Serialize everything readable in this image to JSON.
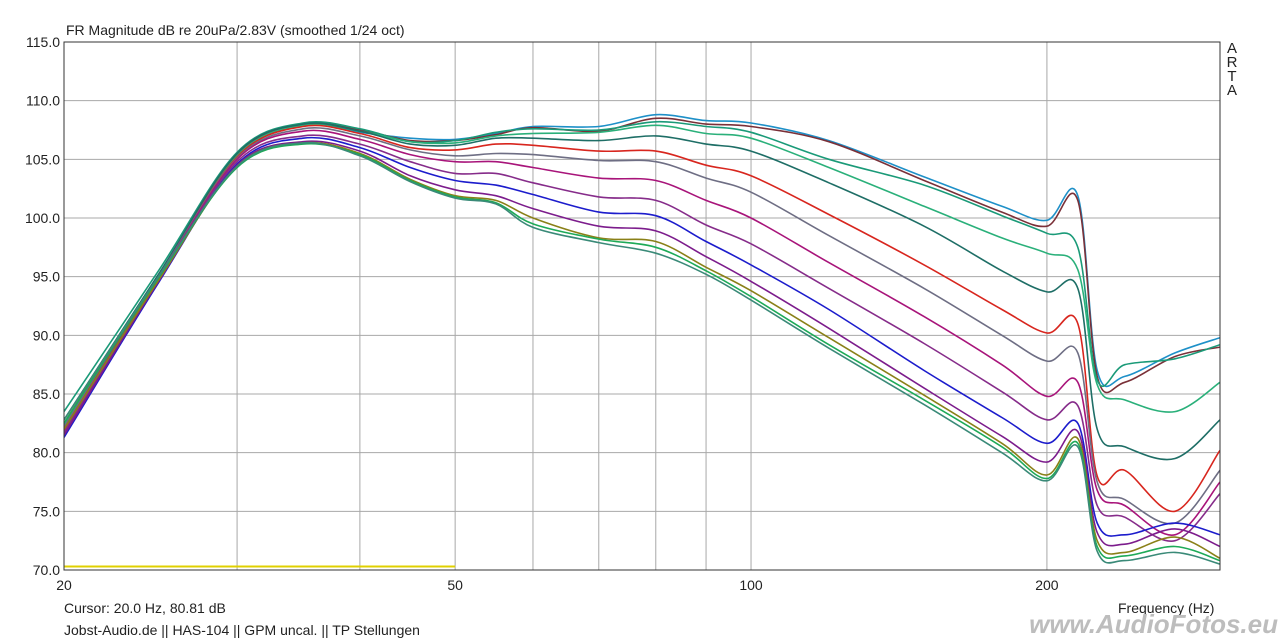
{
  "chart_data": {
    "type": "line",
    "title": "FR Magnitude dB re 20uPa/2.83V (smoothed 1/24 oct)",
    "xlabel": "Frequency (Hz)",
    "x_scale": "log",
    "xlim": [
      20,
      300
    ],
    "ylim": [
      70,
      115
    ],
    "y_ticks": [
      "115.0",
      "110.0",
      "105.0",
      "100.0",
      "95.0",
      "90.0",
      "85.0",
      "80.0",
      "75.0",
      "70.0"
    ],
    "x_ticks": [
      "20",
      "50",
      "100",
      "200"
    ],
    "grid": true,
    "x": [
      20,
      25,
      30,
      35,
      40,
      45,
      50,
      55,
      60,
      70,
      80,
      90,
      100,
      120,
      150,
      180,
      200,
      215,
      225,
      240,
      270,
      300
    ],
    "series": [
      {
        "color": "#1e90c8",
        "values": [
          82.0,
          95.0,
          105.5,
          108.0,
          107.3,
          106.8,
          106.7,
          107.2,
          107.8,
          107.8,
          108.8,
          108.3,
          108.1,
          106.6,
          103.5,
          101.0,
          99.8,
          101.9,
          87.0,
          86.5,
          88.5,
          89.8
        ]
      },
      {
        "color": "#7a3038",
        "values": [
          82.5,
          95.2,
          105.4,
          108.0,
          107.5,
          106.6,
          106.6,
          107.1,
          107.7,
          107.4,
          108.5,
          108.0,
          107.8,
          106.5,
          103.2,
          100.5,
          99.3,
          101.5,
          86.5,
          86.0,
          88.2,
          89.0
        ]
      },
      {
        "color": "#1a9a78",
        "values": [
          83.5,
          95.6,
          105.6,
          108.1,
          107.6,
          106.5,
          106.6,
          107.3,
          107.6,
          107.5,
          108.2,
          107.8,
          107.3,
          105.0,
          102.8,
          100.2,
          98.7,
          97.5,
          86.2,
          87.5,
          88.0,
          89.2
        ]
      },
      {
        "color": "#2ab07a",
        "values": [
          82.3,
          95.1,
          105.3,
          107.9,
          107.4,
          106.5,
          106.4,
          107.0,
          107.2,
          107.3,
          107.9,
          107.2,
          106.8,
          104.3,
          101.0,
          98.3,
          97.0,
          95.6,
          85.8,
          84.5,
          83.5,
          86.0
        ]
      },
      {
        "color": "#1e6e66",
        "values": [
          82.8,
          95.3,
          105.5,
          108.0,
          107.4,
          106.3,
          106.2,
          106.8,
          106.8,
          106.6,
          107.0,
          106.3,
          105.7,
          103.0,
          99.3,
          95.5,
          93.7,
          94.0,
          82.0,
          80.5,
          79.5,
          82.8
        ]
      },
      {
        "color": "#d8261e",
        "values": [
          81.8,
          95.0,
          105.2,
          107.8,
          107.2,
          106.0,
          105.8,
          106.3,
          106.2,
          105.7,
          105.7,
          104.5,
          103.6,
          100.3,
          96.0,
          92.2,
          90.2,
          91.0,
          78.0,
          78.5,
          75.0,
          80.2
        ]
      },
      {
        "color": "#6e6e84",
        "values": [
          82.2,
          95.1,
          105.1,
          107.6,
          107.0,
          105.8,
          105.3,
          105.5,
          105.4,
          104.9,
          104.8,
          103.4,
          102.2,
          98.5,
          94.0,
          90.0,
          87.8,
          88.5,
          77.5,
          76.0,
          74.0,
          78.5
        ]
      },
      {
        "color": "#a8147a",
        "values": [
          82.0,
          95.0,
          105.0,
          107.4,
          106.7,
          105.4,
          104.8,
          104.8,
          104.3,
          103.4,
          103.2,
          101.5,
          100.0,
          96.2,
          91.6,
          87.5,
          84.8,
          86.0,
          76.8,
          75.5,
          73.0,
          77.5
        ]
      },
      {
        "color": "#862c8a",
        "values": [
          81.7,
          94.9,
          104.8,
          107.0,
          106.3,
          104.8,
          103.8,
          103.8,
          103.0,
          101.8,
          101.5,
          99.4,
          97.8,
          94.0,
          89.3,
          85.2,
          82.8,
          84.0,
          75.5,
          74.5,
          72.5,
          76.5
        ]
      },
      {
        "color": "#1c1ccc",
        "values": [
          81.3,
          94.6,
          104.6,
          106.8,
          106.0,
          104.3,
          103.2,
          102.8,
          102.0,
          100.5,
          100.2,
          98.0,
          96.0,
          92.2,
          87.0,
          83.0,
          80.8,
          82.5,
          74.0,
          73.0,
          74.0,
          73.0
        ]
      },
      {
        "color": "#7c1c8c",
        "values": [
          81.5,
          94.7,
          104.5,
          106.5,
          105.7,
          103.6,
          102.4,
          101.9,
          100.8,
          99.3,
          98.9,
          96.7,
          94.6,
          90.6,
          85.5,
          81.4,
          79.2,
          81.8,
          73.2,
          72.2,
          73.5,
          72.0
        ]
      },
      {
        "color": "#8a8018",
        "values": [
          82.0,
          94.8,
          104.4,
          106.4,
          105.5,
          103.3,
          101.9,
          101.5,
          100.0,
          98.3,
          98.0,
          95.8,
          93.8,
          89.8,
          84.9,
          80.8,
          78.1,
          81.2,
          72.5,
          71.5,
          72.8,
          71.0
        ]
      },
      {
        "color": "#1eaa58",
        "values": [
          82.5,
          95.0,
          104.3,
          106.3,
          105.4,
          103.2,
          101.8,
          101.3,
          99.5,
          98.2,
          97.5,
          95.5,
          93.3,
          89.2,
          84.5,
          80.5,
          77.8,
          80.8,
          72.0,
          71.2,
          72.0,
          70.8
        ]
      },
      {
        "color": "#3a8a78",
        "values": [
          82.8,
          95.1,
          104.4,
          106.4,
          105.3,
          103.1,
          101.7,
          101.2,
          99.2,
          97.9,
          97.0,
          95.2,
          93.0,
          88.9,
          84.1,
          80.0,
          77.6,
          80.5,
          71.6,
          70.8,
          71.5,
          70.5
        ]
      }
    ],
    "reference": {
      "color": "#e0d000",
      "x": [
        20,
        50
      ],
      "y": [
        70.3,
        70.3
      ]
    }
  },
  "arta_label": "ARTA",
  "cursor_text": "Cursor: 20.0 Hz, 80.81 dB",
  "info_text": "Jobst-Audio.de  ||  HAS-104  ||  GPM  uncal.  ||  TP Stellungen",
  "watermark": "www.AudioFotos.eu"
}
